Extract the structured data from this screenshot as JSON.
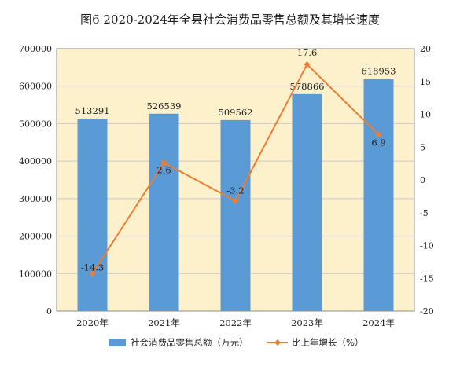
{
  "title": "图6  2020-2024年全县社会消费品零售总额及其增长速度",
  "chart_data": {
    "type": "bar",
    "categories": [
      "2020年",
      "2021年",
      "2022年",
      "2023年",
      "2024年"
    ],
    "series": [
      {
        "name": "社会消费品零售总额（万元）",
        "type": "bar",
        "axis": "left",
        "values": [
          513291,
          526539,
          509562,
          578866,
          618953
        ],
        "labels": [
          "513291",
          "526539",
          "509562",
          "578866",
          "618953"
        ]
      },
      {
        "name": "比上年增长（%）",
        "type": "line",
        "axis": "right",
        "values": [
          -14.3,
          2.6,
          -3.2,
          17.6,
          6.9
        ],
        "labels": [
          "-14.3",
          "2.6",
          "-3.2",
          "17.6",
          "6.9"
        ]
      }
    ],
    "ylim": [
      0,
      700000
    ],
    "yticks": [
      "0",
      "100000",
      "200000",
      "300000",
      "400000",
      "500000",
      "600000",
      "700000"
    ],
    "y2lim": [
      -20,
      20
    ],
    "y2ticks": [
      "-20",
      "-15",
      "-10",
      "-5",
      "0",
      "5",
      "10",
      "15",
      "20"
    ],
    "grid": true,
    "legend_position": "bottom",
    "colors": {
      "bar": "#5b9bd5",
      "line": "#ed7d31",
      "plot_bg": "#fdf1cc",
      "grid": "#c9c9c9"
    }
  }
}
